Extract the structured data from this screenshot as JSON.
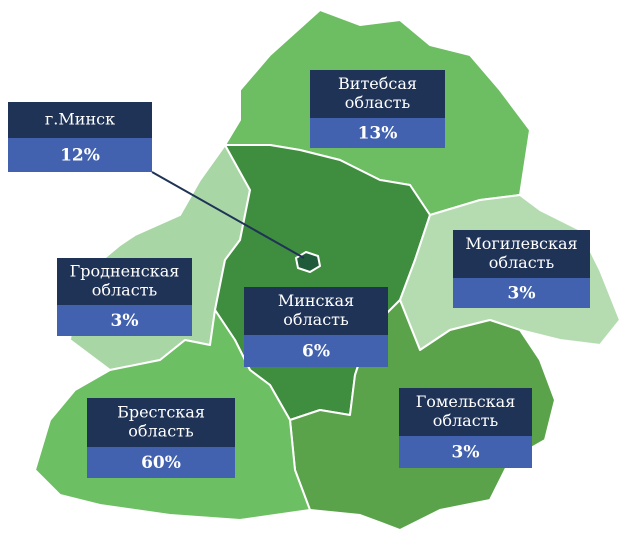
{
  "regions": [
    {
      "name": [
        "Витебсая",
        "область"
      ],
      "share": "13%"
    },
    {
      "name": [
        "г.Минск"
      ],
      "share": "12%"
    },
    {
      "name": [
        "Гродненская",
        "область"
      ],
      "share": "3%"
    },
    {
      "name": [
        "Минская",
        "область"
      ],
      "share": "6%"
    },
    {
      "name": [
        "Могилевская",
        "область"
      ],
      "share": "3%"
    },
    {
      "name": [
        "Брестская",
        "область"
      ],
      "share": "60%"
    },
    {
      "name": [
        "Гомельская",
        "область"
      ],
      "share": "3%"
    }
  ]
}
